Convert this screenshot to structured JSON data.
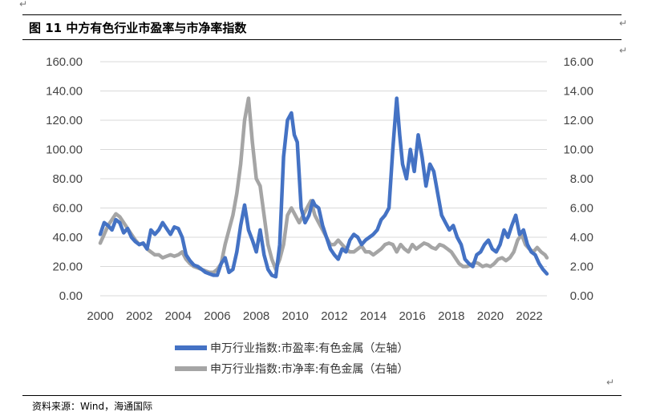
{
  "header": {
    "title": "图 11 中方有色行业市盈率与市净率指数"
  },
  "footer": {
    "source": "资料来源：Wind，海通国际"
  },
  "colors": {
    "pe": "#4472C4",
    "pb": "#A5A5A5",
    "grid": "#D9D9D9"
  },
  "chart_data": {
    "type": "line",
    "title": "",
    "y_left": {
      "min": 0,
      "max": 160,
      "ticks": [
        "0.00",
        "20.00",
        "40.00",
        "60.00",
        "80.00",
        "100.00",
        "120.00",
        "140.00",
        "160.00"
      ]
    },
    "y_right": {
      "min": 0,
      "max": 16,
      "ticks": [
        "0.00",
        "2.00",
        "4.00",
        "6.00",
        "8.00",
        "10.00",
        "12.00",
        "14.00",
        "16.00"
      ]
    },
    "x_range": [
      2000,
      2022.9
    ],
    "x_ticks": [
      "2000",
      "2002",
      "2004",
      "2006",
      "2008",
      "2010",
      "2012",
      "2014",
      "2016",
      "2018",
      "2020",
      "2022"
    ],
    "legend_position": "bottom",
    "series": [
      {
        "name": "申万行业指数:市盈率:有色金属（左轴）",
        "axis": "left",
        "x": [
          2000.0,
          2000.2,
          2000.4,
          2000.6,
          2000.8,
          2001.0,
          2001.2,
          2001.4,
          2001.6,
          2001.8,
          2002.0,
          2002.2,
          2002.4,
          2002.6,
          2002.8,
          2003.0,
          2003.2,
          2003.4,
          2003.6,
          2003.8,
          2004.0,
          2004.2,
          2004.4,
          2004.6,
          2004.8,
          2005.0,
          2005.2,
          2005.4,
          2005.6,
          2005.8,
          2006.0,
          2006.2,
          2006.4,
          2006.6,
          2006.8,
          2007.0,
          2007.2,
          2007.4,
          2007.6,
          2007.8,
          2008.0,
          2008.2,
          2008.4,
          2008.6,
          2008.8,
          2009.0,
          2009.2,
          2009.4,
          2009.6,
          2009.8,
          2009.95,
          2010.1,
          2010.3,
          2010.5,
          2010.7,
          2010.9,
          2011.0,
          2011.2,
          2011.4,
          2011.6,
          2011.8,
          2012.0,
          2012.2,
          2012.4,
          2012.6,
          2012.8,
          2013.0,
          2013.2,
          2013.4,
          2013.6,
          2013.8,
          2014.0,
          2014.2,
          2014.4,
          2014.6,
          2014.8,
          2015.0,
          2015.2,
          2015.35,
          2015.5,
          2015.7,
          2015.9,
          2016.1,
          2016.3,
          2016.5,
          2016.7,
          2016.9,
          2017.1,
          2017.3,
          2017.5,
          2017.7,
          2017.9,
          2018.1,
          2018.3,
          2018.5,
          2018.7,
          2018.9,
          2019.1,
          2019.3,
          2019.5,
          2019.7,
          2019.9,
          2020.1,
          2020.3,
          2020.5,
          2020.7,
          2020.9,
          2021.1,
          2021.3,
          2021.5,
          2021.7,
          2021.9,
          2022.1,
          2022.3,
          2022.5,
          2022.7,
          2022.9
        ],
        "y": [
          42,
          50,
          48,
          45,
          52,
          50,
          43,
          46,
          40,
          37,
          35,
          36,
          32,
          45,
          42,
          45,
          50,
          46,
          42,
          47,
          46,
          40,
          28,
          24,
          21,
          20,
          18,
          16,
          15,
          14,
          14,
          22,
          26,
          16,
          18,
          30,
          48,
          62,
          45,
          38,
          30,
          45,
          28,
          18,
          14,
          13,
          35,
          95,
          120,
          125,
          110,
          105,
          60,
          50,
          55,
          65,
          62,
          60,
          48,
          40,
          32,
          28,
          25,
          32,
          30,
          38,
          42,
          40,
          35,
          38,
          40,
          42,
          45,
          52,
          55,
          60,
          100,
          135,
          110,
          90,
          80,
          100,
          85,
          110,
          95,
          75,
          90,
          85,
          70,
          55,
          50,
          45,
          48,
          40,
          35,
          25,
          22,
          20,
          28,
          30,
          35,
          38,
          32,
          30,
          35,
          45,
          40,
          48,
          55,
          42,
          45,
          35,
          30,
          28,
          22,
          18,
          15
        ]
      },
      {
        "name": "申万行业指数:市净率:有色金属（右轴）",
        "axis": "right",
        "x": [
          2000.0,
          2000.2,
          2000.4,
          2000.6,
          2000.8,
          2001.0,
          2001.2,
          2001.4,
          2001.6,
          2001.8,
          2002.0,
          2002.2,
          2002.4,
          2002.6,
          2002.8,
          2003.0,
          2003.2,
          2003.4,
          2003.6,
          2003.8,
          2004.0,
          2004.2,
          2004.4,
          2004.6,
          2004.8,
          2005.0,
          2005.2,
          2005.4,
          2005.6,
          2005.8,
          2006.0,
          2006.2,
          2006.4,
          2006.6,
          2006.8,
          2007.0,
          2007.2,
          2007.4,
          2007.6,
          2007.8,
          2008.0,
          2008.2,
          2008.4,
          2008.6,
          2008.8,
          2009.0,
          2009.2,
          2009.4,
          2009.6,
          2009.8,
          2010.0,
          2010.2,
          2010.4,
          2010.6,
          2010.8,
          2011.0,
          2011.2,
          2011.4,
          2011.6,
          2011.8,
          2012.0,
          2012.2,
          2012.4,
          2012.6,
          2012.8,
          2013.0,
          2013.2,
          2013.4,
          2013.6,
          2013.8,
          2014.0,
          2014.2,
          2014.4,
          2014.6,
          2014.8,
          2015.0,
          2015.2,
          2015.4,
          2015.6,
          2015.8,
          2016.0,
          2016.2,
          2016.4,
          2016.6,
          2016.8,
          2017.0,
          2017.2,
          2017.4,
          2017.6,
          2017.8,
          2018.0,
          2018.2,
          2018.4,
          2018.6,
          2018.8,
          2019.0,
          2019.2,
          2019.4,
          2019.6,
          2019.8,
          2020.0,
          2020.2,
          2020.4,
          2020.6,
          2020.8,
          2021.0,
          2021.2,
          2021.4,
          2021.6,
          2021.8,
          2022.0,
          2022.2,
          2022.4,
          2022.6,
          2022.8,
          2022.9
        ],
        "y": [
          3.6,
          4.2,
          4.8,
          5.2,
          5.6,
          5.4,
          5.0,
          4.6,
          4.2,
          3.8,
          3.5,
          3.6,
          3.2,
          3.0,
          2.8,
          2.8,
          2.6,
          2.7,
          2.8,
          2.7,
          2.8,
          3.0,
          2.5,
          2.2,
          2.0,
          1.9,
          1.8,
          1.7,
          1.6,
          1.6,
          1.8,
          2.2,
          3.5,
          4.5,
          5.5,
          7.0,
          9.0,
          12.0,
          13.5,
          10.5,
          8.0,
          7.5,
          5.5,
          3.5,
          2.5,
          1.8,
          2.5,
          3.5,
          5.5,
          6.0,
          5.5,
          5.0,
          5.5,
          6.0,
          6.5,
          5.5,
          5.0,
          4.5,
          4.0,
          3.5,
          3.5,
          3.8,
          3.5,
          3.2,
          3.0,
          3.0,
          3.2,
          3.4,
          3.0,
          3.0,
          2.8,
          3.0,
          3.2,
          3.5,
          3.6,
          3.5,
          3.0,
          3.5,
          3.2,
          3.0,
          3.5,
          3.2,
          3.4,
          3.6,
          3.5,
          3.3,
          3.2,
          3.5,
          3.4,
          3.2,
          3.0,
          2.6,
          2.2,
          2.0,
          2.0,
          2.1,
          2.3,
          2.2,
          2.0,
          2.1,
          2.0,
          2.2,
          2.5,
          2.6,
          2.4,
          2.6,
          3.0,
          3.8,
          4.2,
          3.5,
          3.2,
          3.0,
          3.3,
          3.0,
          2.8,
          2.6
        ]
      }
    ]
  }
}
